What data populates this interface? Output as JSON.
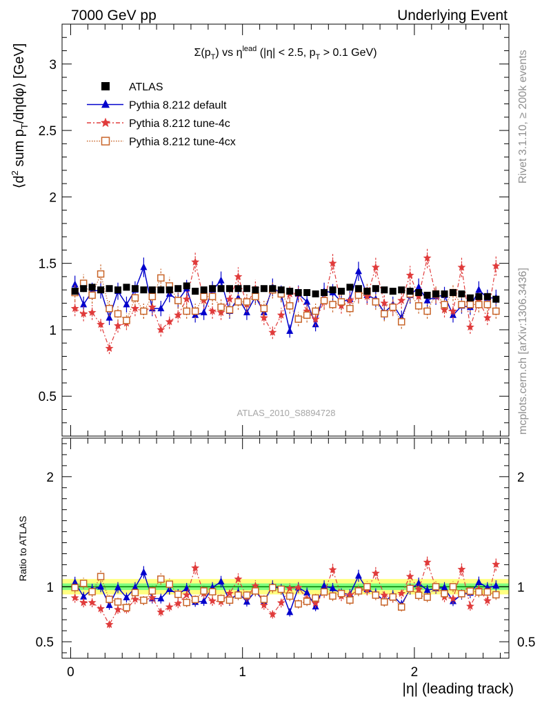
{
  "header": {
    "left": "7000 GeV pp",
    "right": "Underlying Event"
  },
  "side_labels": {
    "rivet": "Rivet 3.1.10, ≥ 200k events",
    "mcplots": "mcplots.cern.ch [arXiv:1306.3436]"
  },
  "watermark": "ATLAS_2010_S8894728",
  "colors": {
    "atlas": "#000000",
    "default": "#0000cc",
    "tune4c": "#e03b3b",
    "tune4cx": "#c86428",
    "band_outer": "#ffff80",
    "band_inner": "#80ff80",
    "ratio_line": "#008000"
  },
  "chart_data": [
    {
      "type": "scatter",
      "panel": "main",
      "title_parts": {
        "sigma": "Σ(p",
        "sub_T": "T",
        "close": ") vs η",
        "sup_lead": "lead",
        "cond": " (|η| < 2.5, p",
        "sub_T2": "T",
        "end": " > 0.1 GeV)"
      },
      "ylabel_parts": {
        "open": "⟨d",
        "sup2": "2",
        "mid": " sum p",
        "sub_T": "T",
        "rest": "/dηdφ⟩ [GeV]"
      },
      "ylim": [
        0.2,
        3.3
      ],
      "yticks": [
        0.5,
        1,
        1.5,
        2,
        2.5,
        3
      ],
      "ytick_labels": [
        "0.5",
        "1",
        "1.5",
        "2",
        "2.5",
        "3"
      ],
      "legend_placement": "top-left",
      "x": [
        0.025,
        0.075,
        0.125,
        0.175,
        0.225,
        0.275,
        0.325,
        0.375,
        0.425,
        0.475,
        0.525,
        0.575,
        0.625,
        0.675,
        0.725,
        0.775,
        0.825,
        0.875,
        0.925,
        0.975,
        1.025,
        1.075,
        1.125,
        1.175,
        1.225,
        1.275,
        1.325,
        1.375,
        1.425,
        1.475,
        1.525,
        1.575,
        1.625,
        1.675,
        1.725,
        1.775,
        1.825,
        1.875,
        1.925,
        1.975,
        2.025,
        2.075,
        2.125,
        2.175,
        2.225,
        2.275,
        2.325,
        2.375,
        2.425,
        2.475
      ],
      "series": [
        {
          "name": "ATLAS",
          "marker": "square",
          "values": [
            1.29,
            1.31,
            1.32,
            1.3,
            1.31,
            1.3,
            1.32,
            1.31,
            1.3,
            1.3,
            1.3,
            1.3,
            1.31,
            1.33,
            1.29,
            1.3,
            1.31,
            1.31,
            1.31,
            1.31,
            1.31,
            1.3,
            1.31,
            1.31,
            1.3,
            1.29,
            1.28,
            1.28,
            1.27,
            1.28,
            1.3,
            1.29,
            1.32,
            1.31,
            1.29,
            1.31,
            1.3,
            1.29,
            1.3,
            1.29,
            1.28,
            1.26,
            1.27,
            1.27,
            1.28,
            1.27,
            1.24,
            1.25,
            1.25,
            1.23
          ]
        },
        {
          "name": "Pythia 8.212 default",
          "marker": "triangle",
          "values": [
            1.34,
            1.19,
            1.29,
            1.3,
            1.09,
            1.29,
            1.19,
            1.3,
            1.47,
            1.16,
            1.16,
            1.27,
            1.22,
            1.31,
            1.11,
            1.13,
            1.3,
            1.37,
            1.14,
            1.24,
            1.13,
            1.25,
            1.13,
            1.32,
            1.27,
            0.99,
            1.27,
            1.21,
            1.04,
            1.29,
            1.28,
            1.21,
            1.23,
            1.44,
            1.26,
            1.23,
            1.13,
            1.19,
            1.09,
            1.26,
            1.32,
            1.22,
            1.25,
            1.26,
            1.11,
            1.18,
            1.17,
            1.3,
            1.24,
            1.24
          ]
        },
        {
          "name": "Pythia 8.212 tune-4c",
          "marker": "star",
          "values": [
            1.16,
            1.12,
            1.13,
            1.04,
            0.86,
            1.03,
            1.05,
            1.16,
            1.14,
            1.17,
            1.0,
            1.06,
            1.11,
            1.23,
            1.51,
            1.22,
            1.14,
            1.13,
            1.23,
            1.4,
            1.19,
            1.31,
            1.09,
            0.98,
            1.11,
            1.27,
            1.27,
            1.14,
            1.08,
            1.21,
            1.5,
            1.18,
            1.22,
            1.27,
            1.25,
            1.47,
            1.2,
            1.16,
            1.22,
            1.41,
            1.25,
            1.54,
            1.26,
            1.15,
            1.14,
            1.47,
            1.02,
            1.22,
            1.09,
            1.48
          ]
        },
        {
          "name": "Pythia 8.212 tune-4cx",
          "marker": "open-square",
          "values": [
            1.28,
            1.35,
            1.26,
            1.42,
            1.16,
            1.12,
            1.07,
            1.24,
            1.14,
            1.25,
            1.39,
            1.33,
            1.22,
            1.14,
            1.14,
            1.25,
            1.25,
            1.17,
            1.15,
            1.21,
            1.21,
            1.25,
            1.16,
            1.3,
            1.27,
            1.18,
            1.08,
            1.11,
            1.14,
            1.22,
            1.19,
            1.21,
            1.16,
            1.26,
            1.29,
            1.21,
            1.12,
            1.17,
            1.06,
            1.27,
            1.18,
            1.14,
            1.27,
            1.19,
            1.28,
            1.19,
            1.19,
            1.19,
            1.19,
            1.14
          ]
        }
      ]
    },
    {
      "type": "scatter",
      "panel": "ratio",
      "xlabel": "|η| (leading track)",
      "ylabel": "Ratio to ATLAS",
      "xlim": [
        -0.05,
        2.55
      ],
      "xticks": [
        0,
        1,
        2
      ],
      "xtick_labels": [
        "0",
        "1",
        "2"
      ],
      "ylim": [
        0.35,
        2.35
      ],
      "yticks": [
        0.5,
        1,
        2
      ],
      "ytick_labels": [
        "0.5",
        "1",
        "2"
      ],
      "right_ytick_labels": [
        "0.5",
        "1",
        "2"
      ],
      "band_outer": 0.07,
      "band_inner": 0.03
    }
  ]
}
